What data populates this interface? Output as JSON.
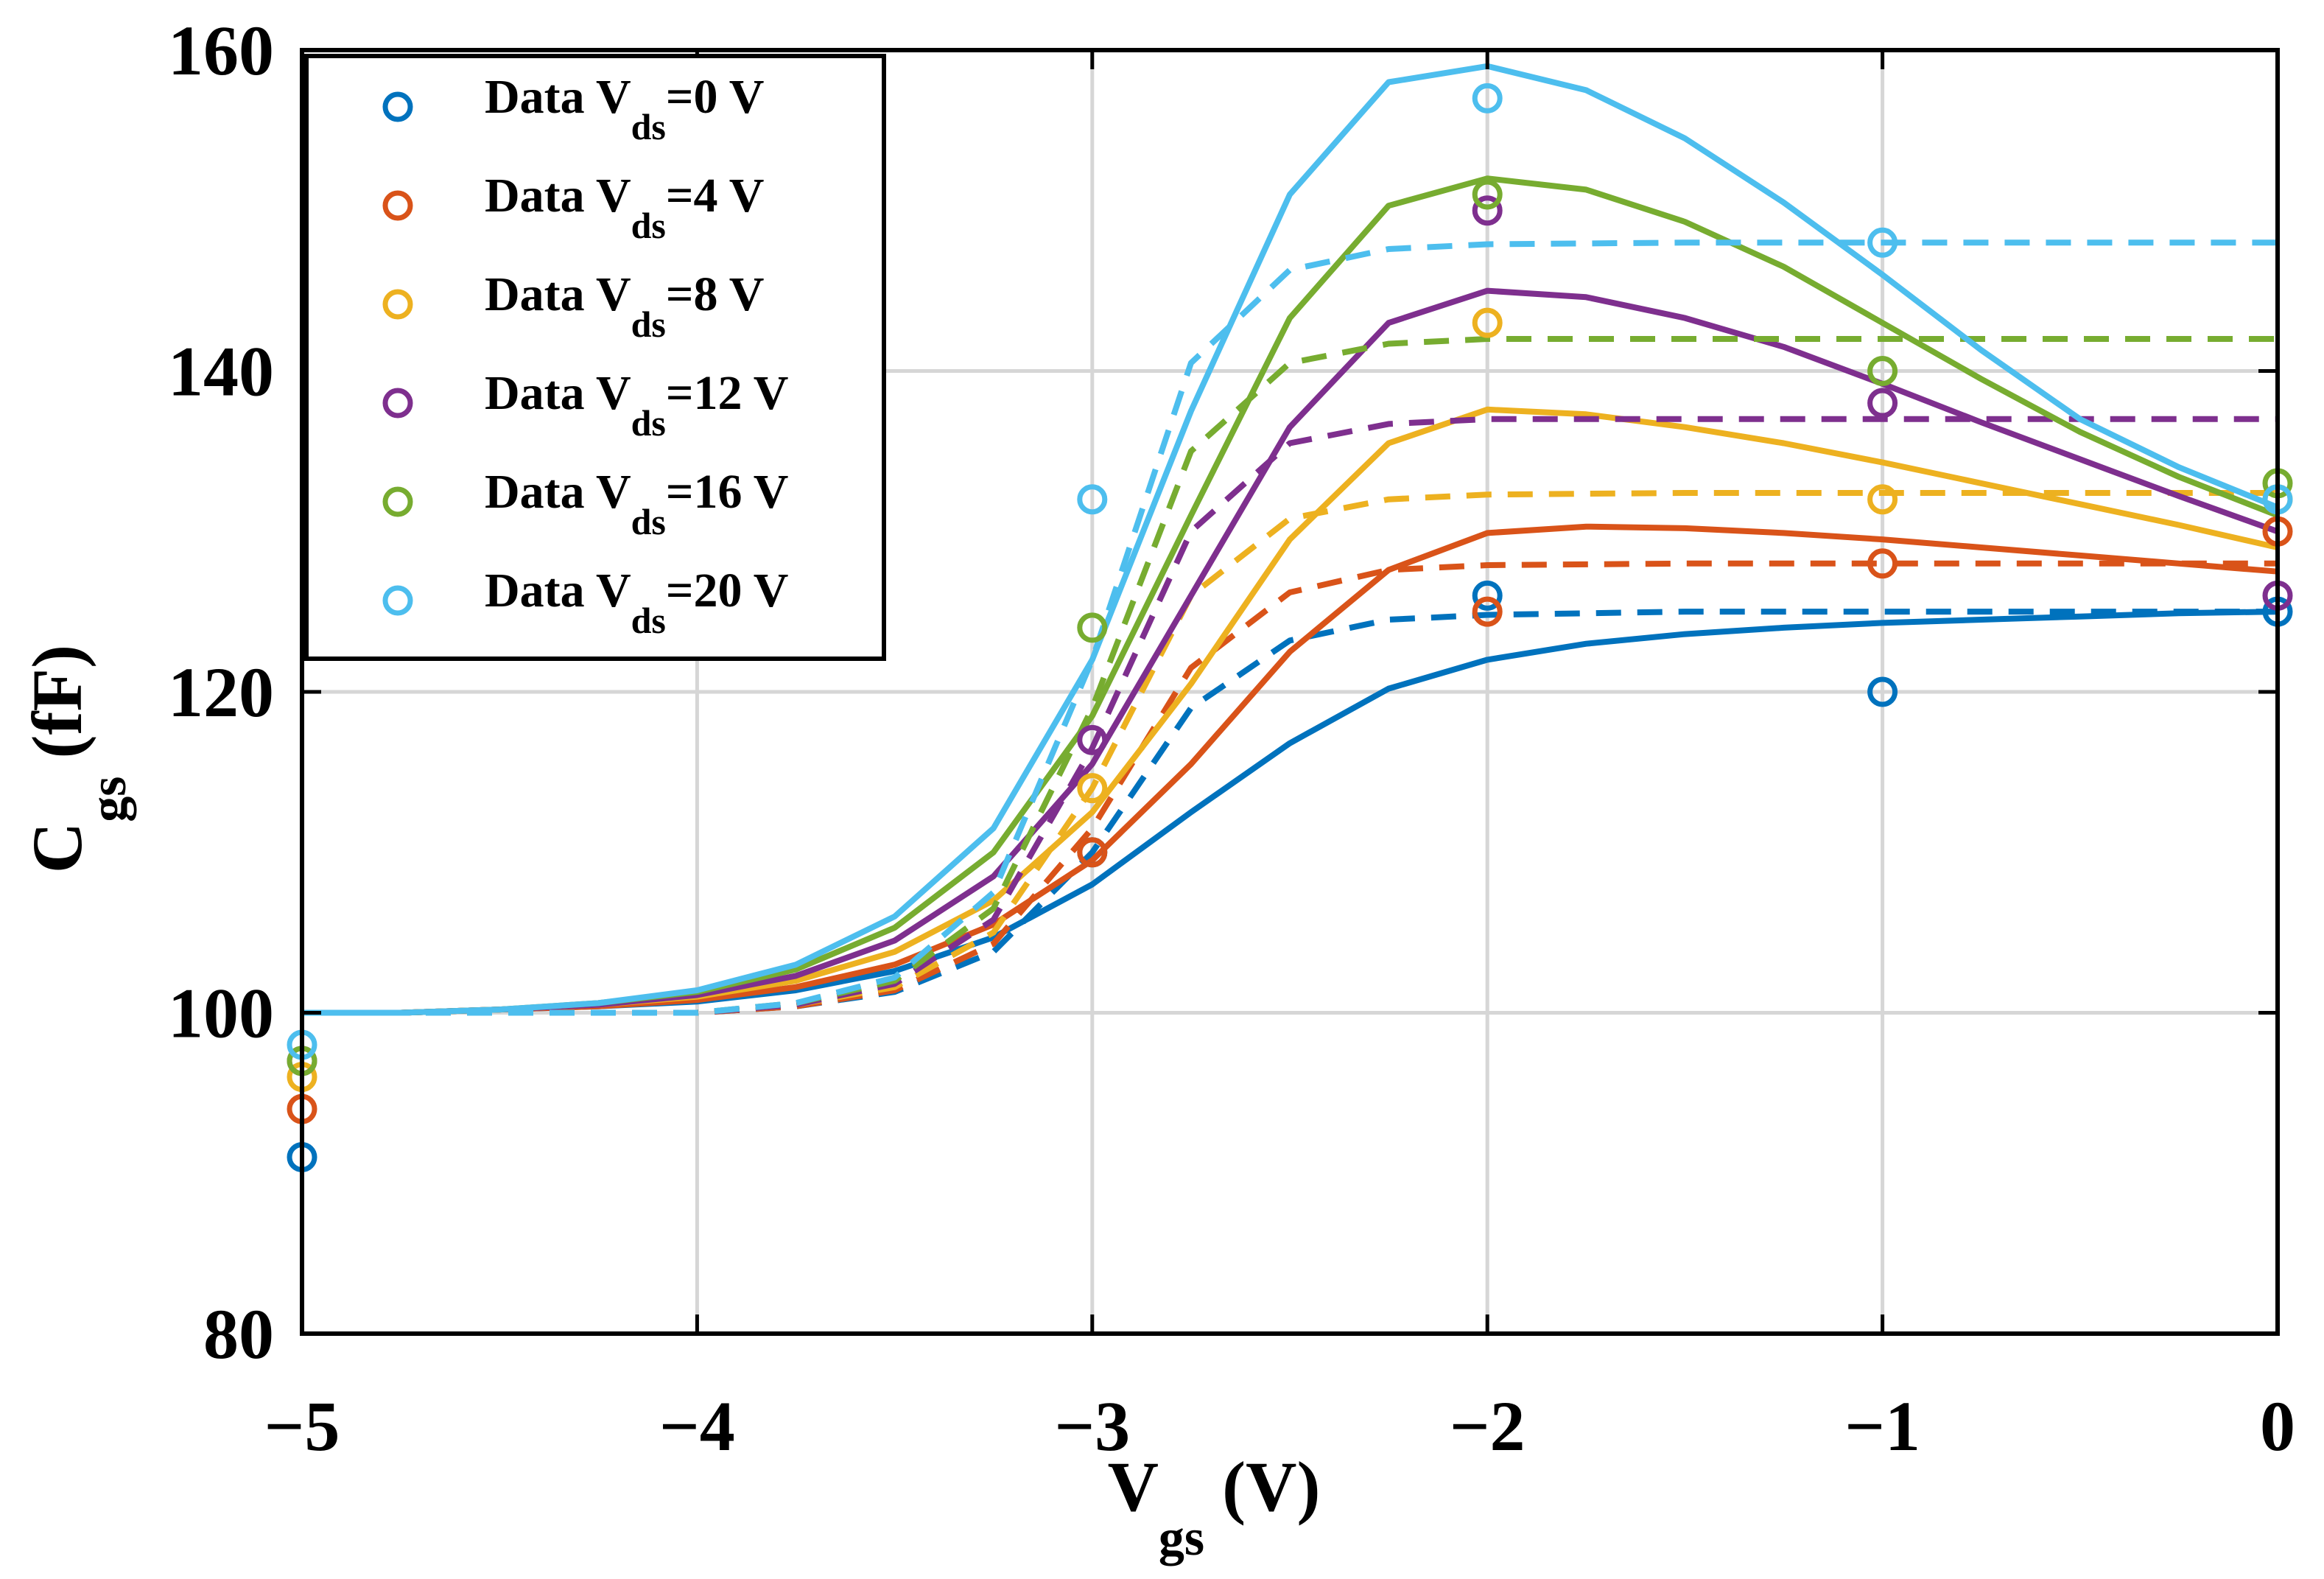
{
  "chart_data": {
    "type": "line",
    "title": "",
    "xlabel": {
      "main": "V",
      "sub": "gs",
      "unit": " (V)"
    },
    "ylabel": {
      "main": "C",
      "sub": "gs",
      "unit": " (fF)"
    },
    "xlim": [
      -5,
      0
    ],
    "ylim": [
      80,
      160
    ],
    "xticks": [
      -5,
      -4,
      -3,
      -2,
      -1,
      0
    ],
    "xtick_labels": [
      "−5",
      "−4",
      "−3",
      "−2",
      "−1",
      "0"
    ],
    "yticks": [
      80,
      100,
      120,
      140,
      160
    ],
    "ytick_labels": [
      "80",
      "100",
      "120",
      "140",
      "160"
    ],
    "grid": true,
    "legend_position": "top-left",
    "x_data": [
      -5,
      -3,
      -2,
      -1,
      0
    ],
    "series": [
      {
        "name": "Vds0",
        "vds": "0",
        "legend": {
          "prefix": "Data V",
          "sub": "ds",
          "suffix": "=0 V"
        },
        "color": "#0072BD",
        "data_y": [
          91,
          110,
          126,
          120,
          125
        ],
        "solid": {
          "x": [
            -5,
            -4.75,
            -4.5,
            -4.25,
            -4,
            -3.75,
            -3.5,
            -3.25,
            -3,
            -2.75,
            -2.5,
            -2.25,
            -2,
            -1.75,
            -1.5,
            -1.25,
            -1,
            -0.75,
            -0.5,
            -0.25,
            0
          ],
          "y": [
            100,
            100,
            100.2,
            100.4,
            100.7,
            101.4,
            102.6,
            104.7,
            108,
            112.5,
            116.8,
            120.2,
            122,
            123,
            123.6,
            124,
            124.3,
            124.5,
            124.7,
            124.9,
            125
          ]
        },
        "dashed": {
          "x": [
            -5,
            -4.5,
            -4,
            -3.75,
            -3.5,
            -3.25,
            -3,
            -2.75,
            -2.5,
            -2.25,
            -2,
            -1.5,
            -1,
            -0.5,
            0
          ],
          "y": [
            100,
            100,
            100,
            100.4,
            101.3,
            103.8,
            110,
            119,
            123.2,
            124.5,
            124.8,
            125,
            125,
            125,
            125
          ]
        }
      },
      {
        "name": "Vds4",
        "vds": "4",
        "legend": {
          "prefix": "Data V",
          "sub": "ds",
          "suffix": "=4 V"
        },
        "color": "#D95319",
        "data_y": [
          94,
          110,
          125,
          128,
          130
        ],
        "solid": {
          "x": [
            -5,
            -4.75,
            -4.5,
            -4.25,
            -4,
            -3.75,
            -3.5,
            -3.25,
            -3,
            -2.75,
            -2.5,
            -2.25,
            -2,
            -1.75,
            -1.5,
            -1.25,
            -1,
            -0.75,
            -0.5,
            -0.25,
            0
          ],
          "y": [
            100,
            100,
            100.2,
            100.4,
            100.8,
            101.6,
            103,
            105.5,
            109.5,
            115.5,
            122.5,
            127.6,
            129.9,
            130.3,
            130.2,
            129.9,
            129.5,
            129,
            128.5,
            128,
            127.5
          ]
        },
        "dashed": {
          "x": [
            -5,
            -4.5,
            -4,
            -3.75,
            -3.5,
            -3.25,
            -3,
            -2.75,
            -2.5,
            -2.25,
            -2,
            -1.5,
            -1,
            -0.5,
            0
          ],
          "y": [
            100,
            100,
            100,
            100.4,
            101.4,
            104.3,
            111.5,
            121.5,
            126.2,
            127.6,
            127.9,
            128,
            128,
            128,
            128
          ]
        }
      },
      {
        "name": "Vds8",
        "vds": "8",
        "legend": {
          "prefix": "Data V",
          "sub": "ds",
          "suffix": "=8 V"
        },
        "color": "#EDB120",
        "data_y": [
          96,
          114,
          143,
          132,
          132
        ],
        "solid": {
          "x": [
            -5,
            -4.75,
            -4.5,
            -4.25,
            -4,
            -3.75,
            -3.5,
            -3.25,
            -3,
            -2.75,
            -2.5,
            -2.25,
            -2,
            -1.75,
            -1.5,
            -1.25,
            -1,
            -0.75,
            -0.5,
            -0.25,
            0
          ],
          "y": [
            100,
            100,
            100.2,
            100.5,
            101,
            102,
            103.8,
            107,
            112.5,
            120.5,
            129.5,
            135.5,
            137.6,
            137.3,
            136.5,
            135.5,
            134.3,
            133,
            131.7,
            130.4,
            129
          ]
        },
        "dashed": {
          "x": [
            -5,
            -4.5,
            -4,
            -3.75,
            -3.5,
            -3.25,
            -3,
            -2.75,
            -2.5,
            -2.25,
            -2,
            -1.5,
            -1,
            -0.5,
            0
          ],
          "y": [
            100,
            100,
            100,
            100.5,
            101.6,
            105,
            114,
            126,
            130.8,
            132,
            132.3,
            132.4,
            132.4,
            132.4,
            132.4
          ]
        }
      },
      {
        "name": "Vds12",
        "vds": "12",
        "legend": {
          "prefix": "Data V",
          "sub": "ds",
          "suffix": "=12 V"
        },
        "color": "#7E2F8E",
        "data_y": [
          97,
          117,
          150,
          138,
          126
        ],
        "solid": {
          "x": [
            -5,
            -4.75,
            -4.5,
            -4.25,
            -4,
            -3.75,
            -3.5,
            -3.25,
            -3,
            -2.75,
            -2.5,
            -2.25,
            -2,
            -1.75,
            -1.5,
            -1.25,
            -1,
            -0.75,
            -0.5,
            -0.25,
            0
          ],
          "y": [
            100,
            100,
            100.2,
            100.5,
            101.1,
            102.3,
            104.5,
            108.5,
            115.5,
            126,
            136.5,
            143,
            145,
            144.6,
            143.3,
            141.5,
            139.2,
            136.8,
            134.5,
            132.2,
            130
          ]
        },
        "dashed": {
          "x": [
            -5,
            -4.5,
            -4,
            -3.75,
            -3.5,
            -3.25,
            -3,
            -2.75,
            -2.5,
            -2.25,
            -2,
            -1.5,
            -1,
            -0.5,
            0
          ],
          "y": [
            100,
            100,
            100,
            100.5,
            101.8,
            105.8,
            116.5,
            130,
            135.5,
            136.7,
            137,
            137,
            137,
            137,
            137
          ]
        }
      },
      {
        "name": "Vds16",
        "vds": "16",
        "legend": {
          "prefix": "Data V",
          "sub": "ds",
          "suffix": "=16 V"
        },
        "color": "#77AC30",
        "data_y": [
          97,
          124,
          151,
          140,
          133
        ],
        "solid": {
          "x": [
            -5,
            -4.75,
            -4.5,
            -4.25,
            -4,
            -3.75,
            -3.5,
            -3.25,
            -3,
            -2.75,
            -2.5,
            -2.25,
            -2,
            -1.75,
            -1.5,
            -1.25,
            -1,
            -0.75,
            -0.5,
            -0.25,
            0
          ],
          "y": [
            100,
            100,
            100.2,
            100.6,
            101.3,
            102.7,
            105.3,
            110,
            118.5,
            131,
            143.3,
            150.3,
            152,
            151.3,
            149.3,
            146.5,
            143,
            139.5,
            136.2,
            133.4,
            131
          ]
        },
        "dashed": {
          "x": [
            -5,
            -4.5,
            -4,
            -3.75,
            -3.5,
            -3.25,
            -3,
            -2.75,
            -2.5,
            -2.25,
            -2,
            -1.5,
            -1,
            -0.5,
            0
          ],
          "y": [
            100,
            100,
            100,
            100.6,
            102,
            106.5,
            119,
            135,
            140.5,
            141.7,
            142,
            142,
            142,
            142,
            142
          ]
        }
      },
      {
        "name": "Vds20",
        "vds": "20",
        "legend": {
          "prefix": "Data V",
          "sub": "ds",
          "suffix": "=20 V"
        },
        "color": "#4DBEEE",
        "data_y": [
          98,
          132,
          157,
          148,
          132
        ],
        "solid": {
          "x": [
            -5,
            -4.75,
            -4.5,
            -4.25,
            -4,
            -3.75,
            -3.5,
            -3.25,
            -3,
            -2.75,
            -2.5,
            -2.25,
            -2,
            -1.75,
            -1.5,
            -1.25,
            -1,
            -0.75,
            -0.5,
            -0.25,
            0
          ],
          "y": [
            100,
            100,
            100.2,
            100.6,
            101.4,
            103,
            106,
            111.5,
            122,
            137.5,
            151,
            158,
            159,
            157.5,
            154.5,
            150.5,
            146,
            141.3,
            137,
            134,
            131.5
          ]
        },
        "dashed": {
          "x": [
            -5,
            -4.5,
            -4,
            -3.75,
            -3.5,
            -3.25,
            -3,
            -2.75,
            -2.5,
            -2.25,
            -2,
            -1.5,
            -1,
            -0.5,
            0
          ],
          "y": [
            100,
            100,
            100,
            100.6,
            102.2,
            107.5,
            122,
            140.5,
            146.3,
            147.6,
            147.9,
            148,
            148,
            148,
            148
          ]
        }
      }
    ]
  }
}
